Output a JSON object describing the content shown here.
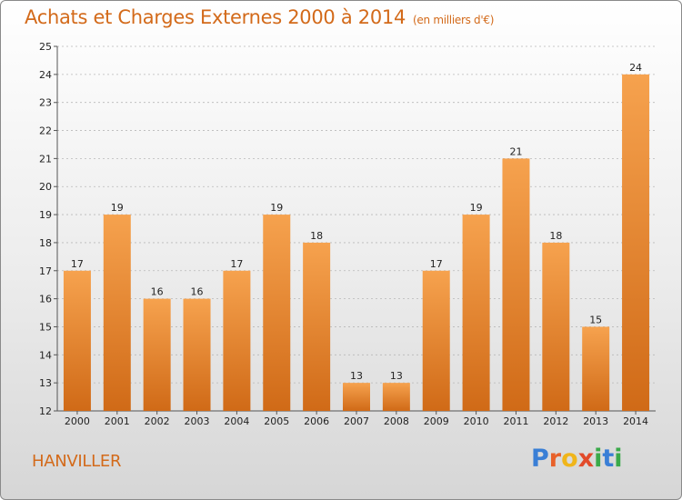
{
  "header": {
    "title": "Achats et Charges Externes 2000 à 2014",
    "subtitle": "(en milliers d'€)"
  },
  "footer": {
    "commune": "HANVILLER",
    "logo_letters": [
      "P",
      "r",
      "o",
      "x",
      "i",
      "t",
      "i"
    ]
  },
  "colors": {
    "bar_light": "#f6a24e",
    "bar_dark": "#d06a17",
    "text_accent": "#d36a1a",
    "grid": "#b8b8b8"
  },
  "chart_data": {
    "type": "bar",
    "title": "Achats et Charges Externes 2000 à 2014",
    "subtitle": "(en milliers d'€)",
    "categories": [
      "2000",
      "2001",
      "2002",
      "2003",
      "2004",
      "2005",
      "2006",
      "2007",
      "2008",
      "2009",
      "2010",
      "2011",
      "2012",
      "2013",
      "2014"
    ],
    "values": [
      17,
      19,
      16,
      16,
      17,
      19,
      18,
      13,
      13,
      17,
      19,
      21,
      18,
      15,
      24
    ],
    "ylim": [
      12,
      25
    ],
    "yticks": [
      12,
      13,
      14,
      15,
      16,
      17,
      18,
      19,
      20,
      21,
      22,
      23,
      24,
      25
    ],
    "grid": true,
    "xlabel": "",
    "ylabel": ""
  }
}
